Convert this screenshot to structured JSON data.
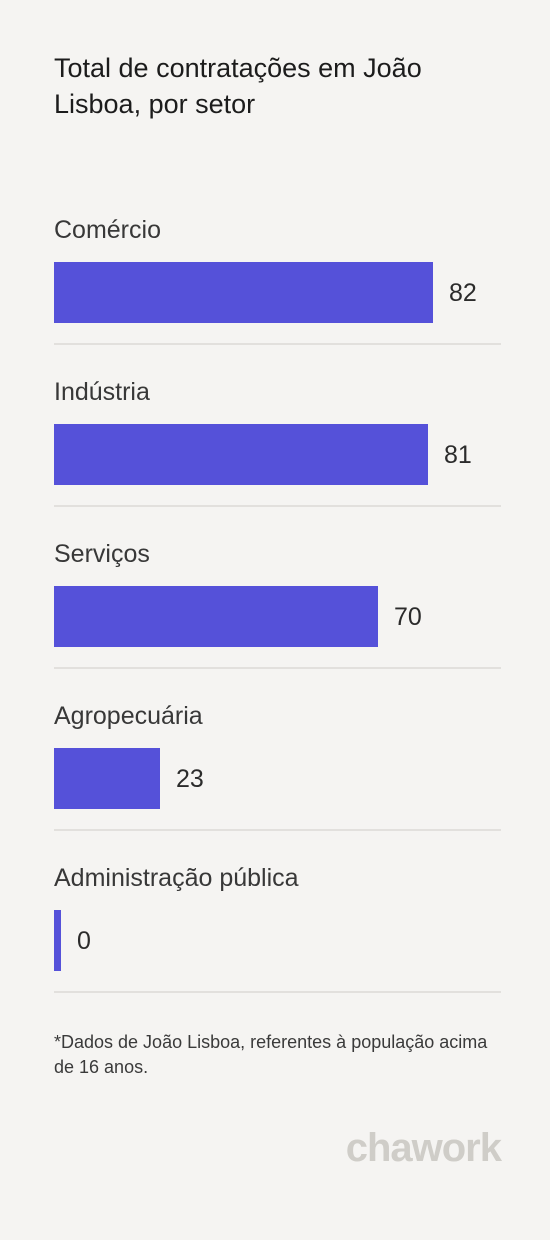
{
  "title": "Total de contratações em João Lisboa, por setor",
  "footnote": "*Dados de João Lisboa, referentes à população acima de 16 anos.",
  "logo": "chawork",
  "colors": {
    "bar": "#5551d9",
    "background": "#f5f4f2",
    "divider": "#e2e0dd"
  },
  "chart_data": {
    "type": "bar",
    "orientation": "horizontal",
    "title": "Total de contratações em João Lisboa, por setor",
    "categories": [
      "Comércio",
      "Indústria",
      "Serviços",
      "Agropecuária",
      "Administração pública"
    ],
    "values": [
      82,
      81,
      70,
      23,
      0
    ],
    "xlabel": "",
    "ylabel": "",
    "grid": false,
    "legend": "none"
  }
}
